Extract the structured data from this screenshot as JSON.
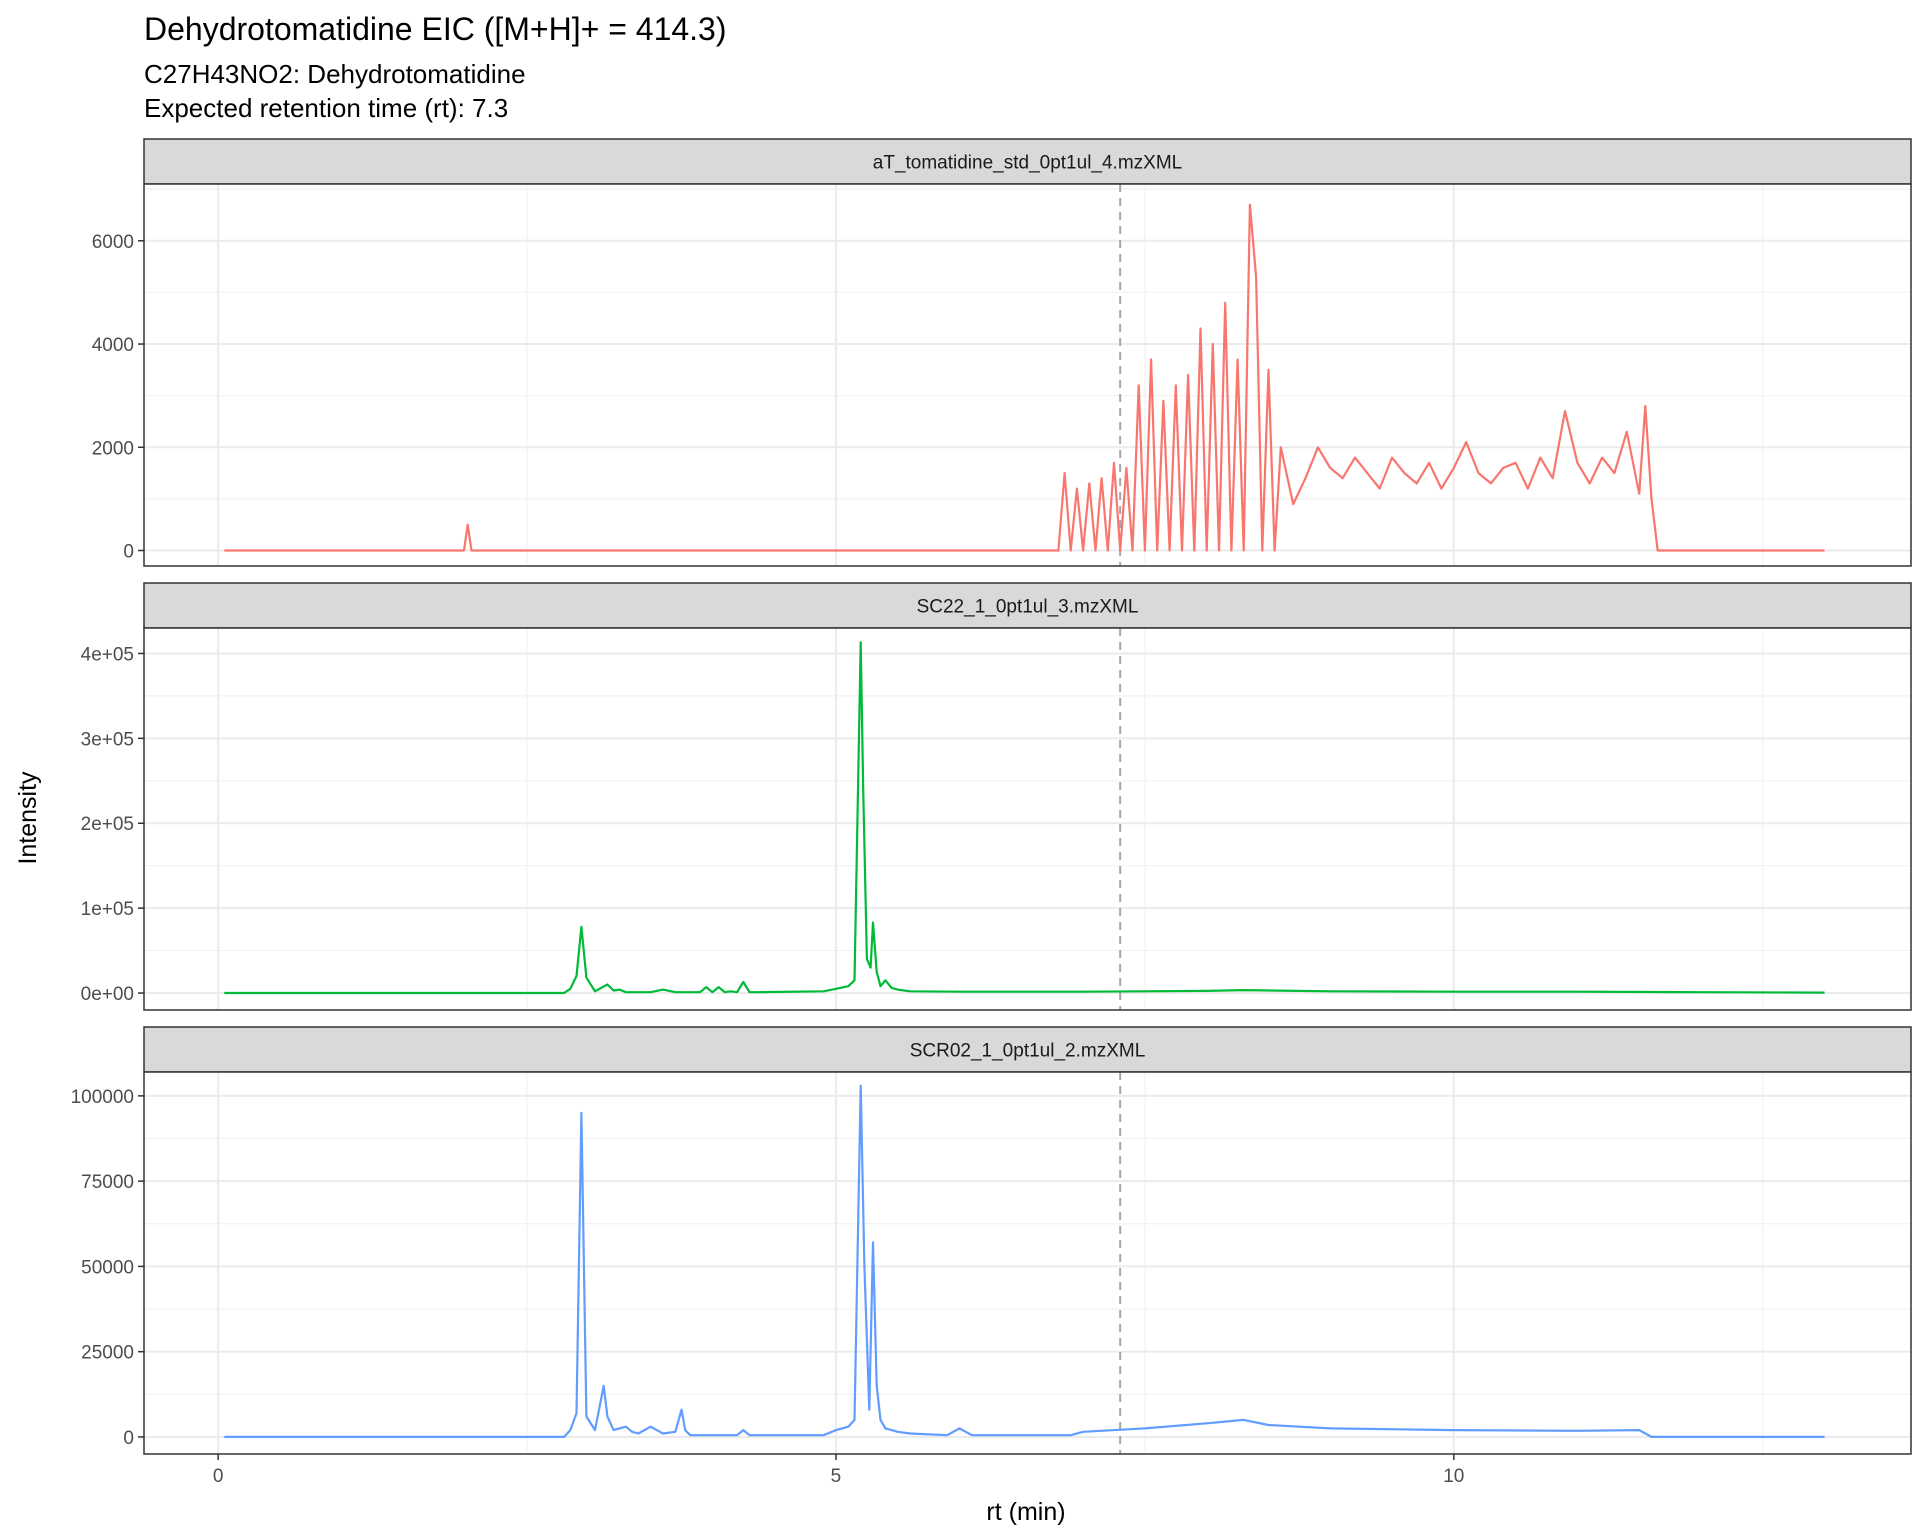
{
  "chart_data": {
    "type": "line",
    "title": "Dehydrotomatidine EIC ([M+H]+ = 414.3)",
    "subtitle_lines": [
      "C27H43NO2: Dehydrotomatidine",
      "Expected retention time (rt): 7.3"
    ],
    "xlabel": "rt (min)",
    "ylabel": "Intensity",
    "xlim": [
      -0.6,
      13.7
    ],
    "x_ticks": [
      0,
      5,
      10
    ],
    "x_tick_labels": [
      "0",
      "5",
      "10"
    ],
    "expected_rt": 7.3,
    "grid": true,
    "legend": "none",
    "panels": [
      {
        "strip_label": "aT_tomatidine_std_0pt1ul_4.mzXML",
        "color": "#F8766D",
        "ylim": [
          -300,
          7100
        ],
        "y_ticks": [
          0,
          2000,
          4000,
          6000
        ],
        "y_tick_labels": [
          "0",
          "2000",
          "4000",
          "6000"
        ],
        "series": {
          "name": "aT_tomatidine_std_0pt1ul_4.mzXML",
          "x": [
            0.05,
            1.99,
            2.02,
            2.05,
            6.8,
            6.85,
            6.9,
            6.95,
            7.0,
            7.05,
            7.1,
            7.15,
            7.2,
            7.25,
            7.3,
            7.35,
            7.4,
            7.45,
            7.5,
            7.55,
            7.6,
            7.65,
            7.7,
            7.75,
            7.8,
            7.85,
            7.9,
            7.95,
            8.0,
            8.05,
            8.1,
            8.15,
            8.2,
            8.25,
            8.3,
            8.35,
            8.4,
            8.45,
            8.5,
            8.55,
            8.6,
            8.7,
            8.8,
            8.9,
            9.0,
            9.1,
            9.2,
            9.3,
            9.4,
            9.5,
            9.6,
            9.7,
            9.8,
            9.9,
            10.0,
            10.1,
            10.2,
            10.3,
            10.4,
            10.5,
            10.6,
            10.7,
            10.8,
            10.9,
            11.0,
            11.1,
            11.2,
            11.3,
            11.4,
            11.5,
            11.55,
            11.6,
            11.65,
            13.0
          ],
          "y": [
            0,
            0,
            500,
            0,
            0,
            1500,
            0,
            1200,
            0,
            1300,
            0,
            1400,
            0,
            1700,
            0,
            1600,
            0,
            3200,
            0,
            3700,
            0,
            2900,
            0,
            3200,
            0,
            3400,
            0,
            4300,
            0,
            4000,
            0,
            4800,
            0,
            3700,
            0,
            6700,
            5300,
            0,
            3500,
            0,
            2000,
            900,
            1400,
            2000,
            1600,
            1400,
            1800,
            1500,
            1200,
            1800,
            1500,
            1300,
            1700,
            1200,
            1600,
            2100,
            1500,
            1300,
            1600,
            1700,
            1200,
            1800,
            1400,
            2700,
            1700,
            1300,
            1800,
            1500,
            2300,
            1100,
            2800,
            1000,
            0,
            0
          ]
        }
      },
      {
        "strip_label": "SC22_1_0pt1ul_3.mzXML",
        "color": "#00BA38",
        "ylim": [
          -20000,
          430000
        ],
        "y_ticks": [
          0,
          100000,
          200000,
          300000,
          400000
        ],
        "y_tick_labels": [
          "0e+00",
          "1e+05",
          "2e+05",
          "3e+05",
          "4e+05"
        ],
        "series": {
          "name": "SC22_1_0pt1ul_3.mzXML",
          "x": [
            0.05,
            2.8,
            2.85,
            2.9,
            2.94,
            2.98,
            3.05,
            3.15,
            3.2,
            3.25,
            3.3,
            3.5,
            3.6,
            3.7,
            3.9,
            3.95,
            4.0,
            4.05,
            4.1,
            4.15,
            4.2,
            4.25,
            4.3,
            4.35,
            4.9,
            5.0,
            5.1,
            5.15,
            5.2,
            5.22,
            5.25,
            5.28,
            5.3,
            5.33,
            5.36,
            5.4,
            5.45,
            5.5,
            5.6,
            6.0,
            7.0,
            8.0,
            8.3,
            9.0,
            10.0,
            11.0,
            12.0,
            13.0
          ],
          "y": [
            0,
            0,
            5000,
            20000,
            78000,
            18000,
            2000,
            10000,
            3000,
            4000,
            1000,
            1000,
            4000,
            1000,
            1000,
            7000,
            1000,
            7000,
            1000,
            2000,
            1000,
            13000,
            1000,
            1000,
            2000,
            5000,
            8000,
            15000,
            413000,
            240000,
            40000,
            30000,
            83000,
            25000,
            8000,
            15000,
            6000,
            4000,
            2000,
            1500,
            1500,
            2500,
            3500,
            2000,
            1500,
            1500,
            1000,
            500
          ]
        }
      },
      {
        "strip_label": "SCR02_1_0pt1ul_2.mzXML",
        "color": "#619CFF",
        "ylim": [
          -5000,
          107000
        ],
        "y_ticks": [
          0,
          25000,
          50000,
          75000,
          100000
        ],
        "y_tick_labels": [
          "0",
          "25000",
          "50000",
          "75000",
          "100000"
        ],
        "series": {
          "name": "SCR02_1_0pt1ul_2.mzXML",
          "x": [
            0.05,
            2.8,
            2.85,
            2.9,
            2.94,
            2.98,
            3.05,
            3.12,
            3.15,
            3.2,
            3.3,
            3.35,
            3.4,
            3.5,
            3.6,
            3.7,
            3.75,
            3.78,
            3.82,
            3.85,
            4.2,
            4.25,
            4.3,
            4.9,
            5.0,
            5.1,
            5.15,
            5.2,
            5.23,
            5.27,
            5.3,
            5.33,
            5.36,
            5.4,
            5.45,
            5.5,
            5.6,
            5.9,
            6.0,
            6.1,
            6.9,
            7.0,
            7.5,
            8.0,
            8.3,
            8.5,
            9.0,
            10.0,
            11.0,
            11.5,
            11.6,
            13.0
          ],
          "y": [
            0,
            0,
            2000,
            7000,
            95000,
            6000,
            2000,
            15000,
            6000,
            2000,
            3000,
            1500,
            1000,
            3000,
            1000,
            1500,
            8000,
            2000,
            500,
            500,
            500,
            2000,
            500,
            500,
            2000,
            3000,
            5000,
            103000,
            50000,
            8000,
            57000,
            15000,
            5000,
            2500,
            2000,
            1500,
            1000,
            500,
            2500,
            500,
            500,
            1500,
            2500,
            4000,
            5000,
            3500,
            2500,
            2000,
            1800,
            2000,
            0,
            0
          ]
        }
      }
    ]
  }
}
